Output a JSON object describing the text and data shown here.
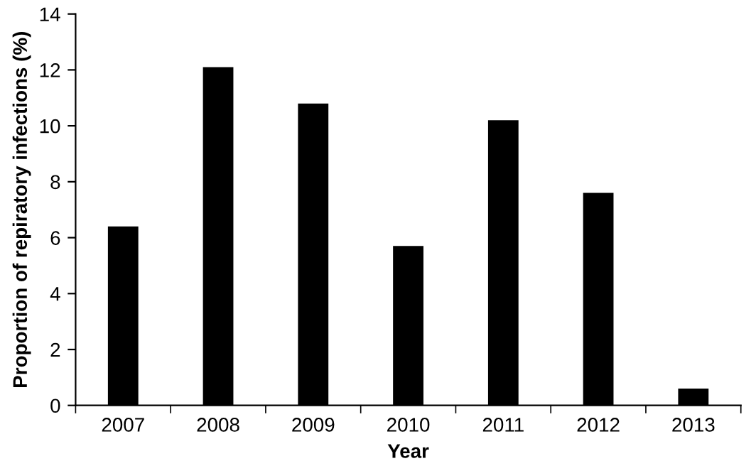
{
  "chart_data": {
    "type": "bar",
    "xlabel": "Year",
    "ylabel": "Proportion of repiratory infections (%)",
    "categories": [
      "2007",
      "2008",
      "2009",
      "2010",
      "2011",
      "2012",
      "2013"
    ],
    "values": [
      6.4,
      12.1,
      10.8,
      5.7,
      10.2,
      7.6,
      0.6
    ],
    "color": "#000000",
    "ylim": [
      0,
      14
    ],
    "yticks": [
      0,
      2,
      4,
      6,
      8,
      10,
      12,
      14
    ],
    "grid": false
  }
}
